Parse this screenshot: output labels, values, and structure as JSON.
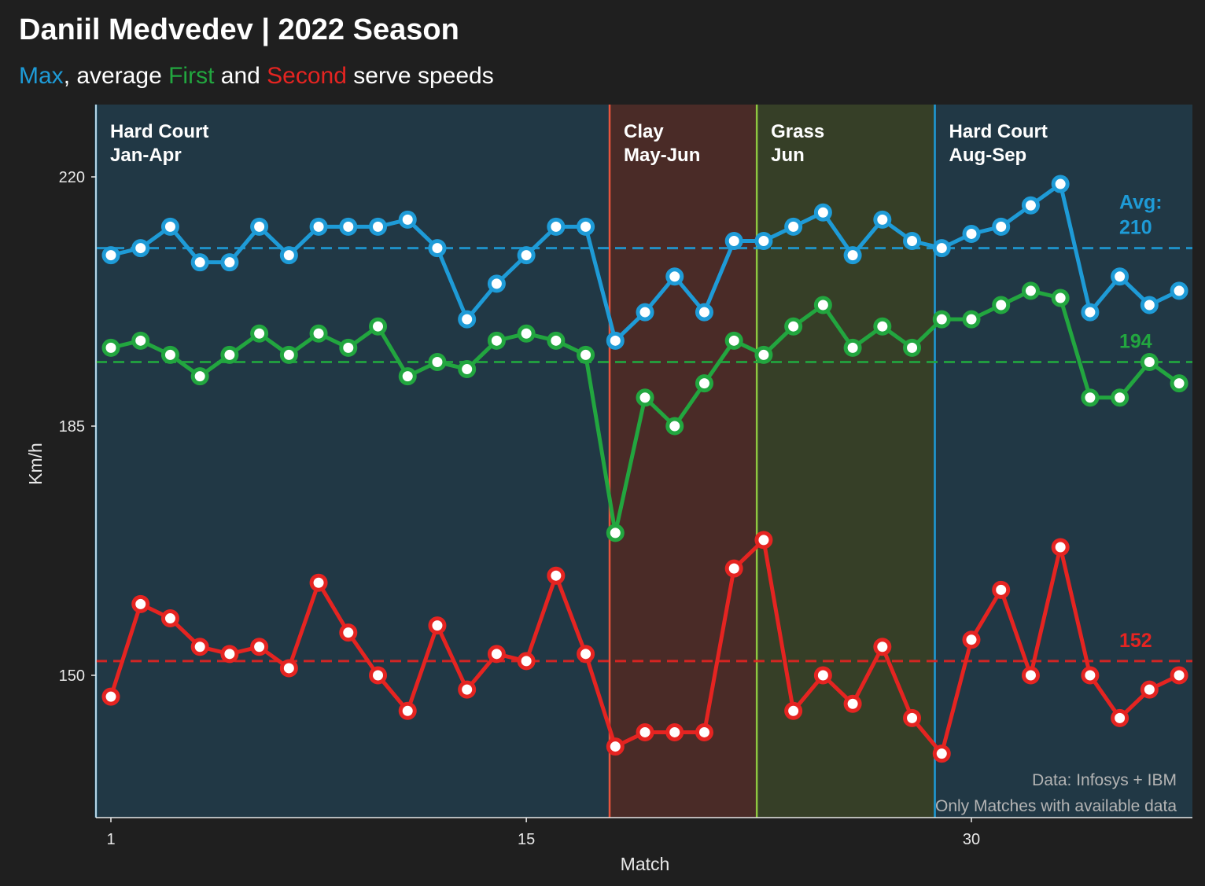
{
  "title": "Daniil Medvedev | 2022 Season",
  "subtitle": {
    "max": "Max",
    "sep1": ", average ",
    "first": "First",
    "sep2": " and ",
    "second": "Second",
    "tail": " serve speeds"
  },
  "colors": {
    "background": "#1f1f1f",
    "max": "#1e9bd7",
    "first": "#22a63f",
    "second": "#e52421",
    "hard_region": "#213845",
    "clay_region": "#4a2b27",
    "grass_region": "#363f27",
    "hard_border": "#1e9bd7",
    "clay_border": "#e8553d",
    "grass_border": "#8ec641"
  },
  "footnote": {
    "line1": "Data: Infosys + IBM",
    "line2": "Only Matches with available data"
  },
  "chart_data": {
    "type": "line",
    "xlabel": "Match",
    "ylabel": "Km/h",
    "xlim": [
      0.55,
      37.8
    ],
    "ylim": [
      130,
      220.5
    ],
    "xticks": [
      1,
      15,
      30
    ],
    "yticks": [
      150,
      185,
      220
    ],
    "grid": false,
    "x": [
      1,
      2,
      3,
      4,
      5,
      6,
      7,
      8,
      9,
      10,
      11,
      12,
      13,
      14,
      15,
      16,
      17,
      18,
      19,
      20,
      21,
      22,
      23,
      24,
      25,
      26,
      27,
      28,
      29,
      30,
      31,
      32,
      33,
      34,
      35,
      36,
      37
    ],
    "series": [
      {
        "name": "Max",
        "color_key": "max",
        "values": [
          209,
          210,
          213,
          208,
          208,
          213,
          209,
          213,
          213,
          213,
          214,
          210,
          200,
          205,
          209,
          213,
          213,
          197,
          201,
          206,
          201,
          211,
          211,
          213,
          215,
          209,
          214,
          211,
          210,
          212,
          213,
          216,
          219,
          201,
          206,
          202,
          204
        ],
        "average": 210,
        "average_label_line1": "Avg:",
        "average_label_line2": "210"
      },
      {
        "name": "First",
        "color_key": "first",
        "values": [
          196,
          197,
          195,
          192,
          195,
          198,
          195,
          198,
          196,
          199,
          192,
          194,
          193,
          197,
          198,
          197,
          195,
          170,
          189,
          185,
          191,
          197,
          195,
          199,
          202,
          196,
          199,
          196,
          200,
          200,
          202,
          204,
          203,
          189,
          189,
          194,
          191
        ],
        "average": 194,
        "average_label_line1": "",
        "average_label_line2": "194"
      },
      {
        "name": "Second",
        "color_key": "second",
        "values": [
          147,
          160,
          158,
          154,
          153,
          154,
          151,
          163,
          156,
          150,
          145,
          157,
          148,
          153,
          152,
          164,
          153,
          140,
          142,
          142,
          142,
          165,
          169,
          145,
          150,
          146,
          154,
          144,
          139,
          155,
          162,
          150,
          168,
          150,
          144,
          148,
          150
        ],
        "average": 152,
        "average_label_line1": "",
        "average_label_line2": "152"
      }
    ],
    "regions": [
      {
        "surface": "hard",
        "label_line1": "Hard Court",
        "label_line2": "Jan-Apr",
        "x_start": 0.55,
        "x_end": 18.0
      },
      {
        "surface": "clay",
        "label_line1": "Clay",
        "label_line2": "May-Jun",
        "x_start": 18.0,
        "x_end": 23.0
      },
      {
        "surface": "grass",
        "label_line1": "Grass",
        "label_line2": "Jun",
        "x_start": 23.0,
        "x_end": 29.05
      },
      {
        "surface": "hard",
        "label_line1": "Hard Court",
        "label_line2": "Aug-Sep",
        "x_start": 29.05,
        "x_end": 37.8
      }
    ]
  }
}
